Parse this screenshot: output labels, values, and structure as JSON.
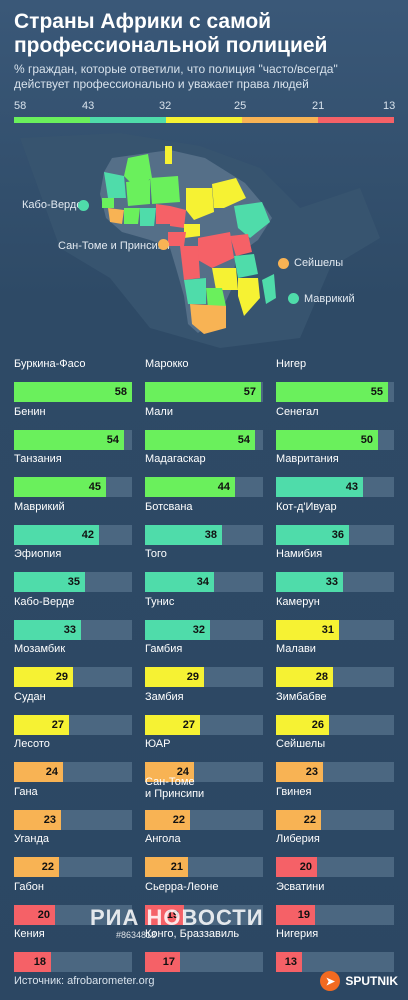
{
  "title": "Страны Африки с самой профессиональной полицией",
  "subtitle": "% граждан, которые ответили, что полиция \"часто/всегда\" действует профессионально и уважает права людей",
  "legend": {
    "ticks": [
      "58",
      "43",
      "32",
      "25",
      "21",
      "13"
    ],
    "colors": [
      "#6af05c",
      "#4fdcaa",
      "#f6f233",
      "#f8b354",
      "#f56167"
    ]
  },
  "map_labels": {
    "cabo_verde": "Кабо-Верде",
    "sao_tome": "Сан-Томе и Принсипи",
    "seychelles": "Сейшелы",
    "mauritius": "Маврикий"
  },
  "chart_data": {
    "type": "bar",
    "title": "Страны Африки с самой профессиональной полицией",
    "xlim": [
      0,
      58
    ],
    "categories": [
      "Буркина-Фасо",
      "Марокко",
      "Нигер",
      "Бенин",
      "Мали",
      "Сенегал",
      "Танзания",
      "Мадагаскар",
      "Мавритания",
      "Маврикий",
      "Ботсвана",
      "Кот-д'Ивуар",
      "Эфиопия",
      "Того",
      "Намибия",
      "Кабо-Верде",
      "Тунис",
      "Камерун",
      "Мозамбик",
      "Гамбия",
      "Малави",
      "Судан",
      "Замбия",
      "Зимбабве",
      "Лесото",
      "ЮАР",
      "Сейшелы",
      "Гана",
      "Сан-Томе\nи Принсипи",
      "Гвинея",
      "Уганда",
      "Ангола",
      "Либерия",
      "Габон",
      "Сьерра-Леоне",
      "Эсватини",
      "Кения",
      "Конго, Браззавиль",
      "Нигерия"
    ],
    "values": [
      58,
      57,
      55,
      54,
      54,
      50,
      45,
      44,
      43,
      42,
      38,
      36,
      35,
      34,
      33,
      33,
      32,
      31,
      29,
      29,
      28,
      27,
      27,
      26,
      24,
      24,
      23,
      23,
      22,
      22,
      22,
      21,
      20,
      20,
      19,
      19,
      18,
      17,
      13
    ]
  },
  "colors": {
    "green": "#6af05c",
    "teal": "#4fdcaa",
    "yellow": "#f6f233",
    "orange": "#f8b354",
    "red": "#f56167",
    "track": "#4b6781"
  },
  "footer": {
    "source": "Источник: afrobarometer.org",
    "brand": "SPUTNIK",
    "watermark_name": "РИА НОВОСТИ",
    "watermark_id": "#8634818"
  }
}
